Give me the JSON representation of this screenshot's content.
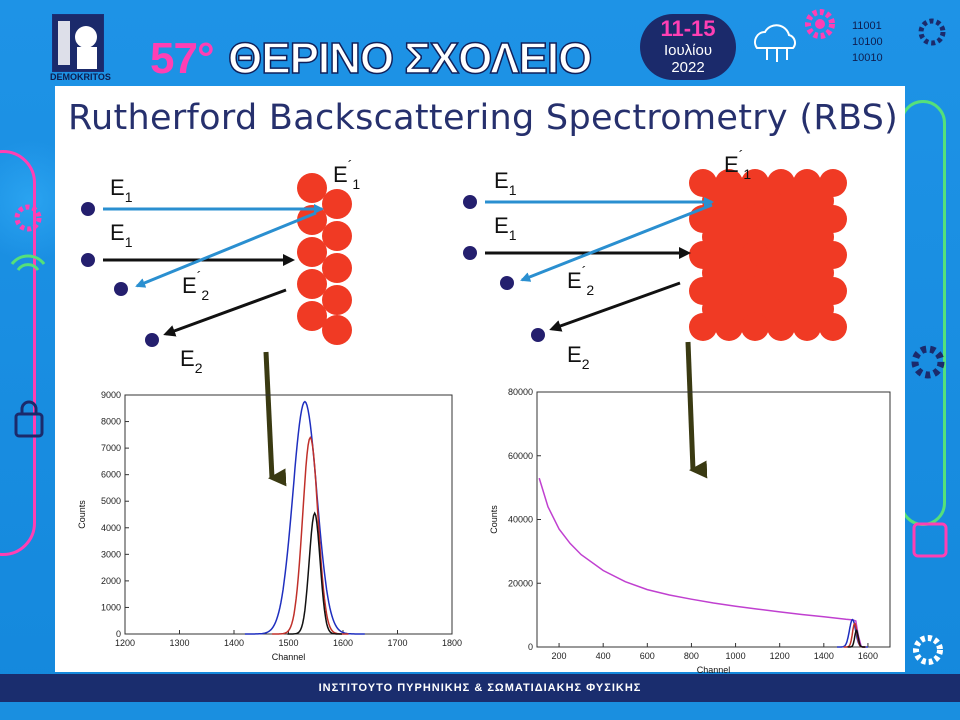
{
  "header": {
    "logo_text": "DEMOKRITOS",
    "edition": "57°",
    "school": "ΘΕΡΙΝΟ ΣΧΟΛΕΙΟ",
    "dates": "11-15",
    "month": "Ιουλίου",
    "year": "2022",
    "binary": [
      "11001",
      "10100",
      "10010"
    ]
  },
  "slide": {
    "title": "Rutherford Backscattering Spectrometry (RBS)",
    "labels": {
      "E": "E",
      "sub1": "1",
      "sub2": "2",
      "prime": "´"
    }
  },
  "footer": {
    "text": "ΙΝΣΤΙΤΟΥΤΟ ΠΥΡΗΝΙΚΗΣ & ΣΩΜΑΤΙΔΙΑΚΗΣ ΦΥΣΙΚΗΣ"
  },
  "colors": {
    "atom": "#f03a24",
    "beam": "#2a8fd0",
    "particle": "#241f6e",
    "pink": "#ff3fb4",
    "navy": "#1a2d6e"
  },
  "chart_data": [
    {
      "type": "line",
      "xlabel": "Channel",
      "ylabel": "Counts",
      "xlim": [
        1200,
        1800
      ],
      "ylim": [
        0,
        9000
      ],
      "xticks": [
        1200,
        1300,
        1400,
        1500,
        1600,
        1700,
        1800
      ],
      "yticks": [
        0,
        1000,
        2000,
        3000,
        4000,
        5000,
        6000,
        7000,
        8000,
        9000
      ],
      "series": [
        {
          "color": "#1f2fbf",
          "peak_x": 1530,
          "peak_y": 8750,
          "width": 22
        },
        {
          "color": "#c0302a",
          "peak_x": 1540,
          "peak_y": 7400,
          "width": 14
        },
        {
          "color": "#111111",
          "peak_x": 1548,
          "peak_y": 4550,
          "width": 10
        }
      ]
    },
    {
      "type": "line",
      "xlabel": "Channel",
      "ylabel": "Counts",
      "xlim": [
        100,
        1700
      ],
      "ylim": [
        0,
        80000
      ],
      "xticks": [
        200,
        400,
        600,
        800,
        1000,
        1200,
        1400,
        1600
      ],
      "yticks": [
        0,
        20000,
        40000,
        60000,
        80000
      ],
      "series": [
        {
          "color": "#c040d0",
          "x": [
            110,
            150,
            200,
            250,
            300,
            400,
            500,
            600,
            700,
            800,
            900,
            1000,
            1100,
            1200,
            1300,
            1400,
            1500,
            1530,
            1545,
            1555,
            1570
          ],
          "y": [
            53000,
            44000,
            37000,
            32500,
            29000,
            24000,
            20500,
            18000,
            16300,
            15000,
            13800,
            12800,
            11900,
            11000,
            10200,
            9500,
            8700,
            8500,
            8200,
            4000,
            0
          ]
        },
        {
          "color": "#1f2fbf",
          "peak_x": 1530,
          "peak_y": 8600,
          "width": 14
        },
        {
          "color": "#c0302a",
          "peak_x": 1540,
          "peak_y": 7400,
          "width": 10
        },
        {
          "color": "#111111",
          "peak_x": 1548,
          "peak_y": 5200,
          "width": 8
        }
      ]
    }
  ]
}
